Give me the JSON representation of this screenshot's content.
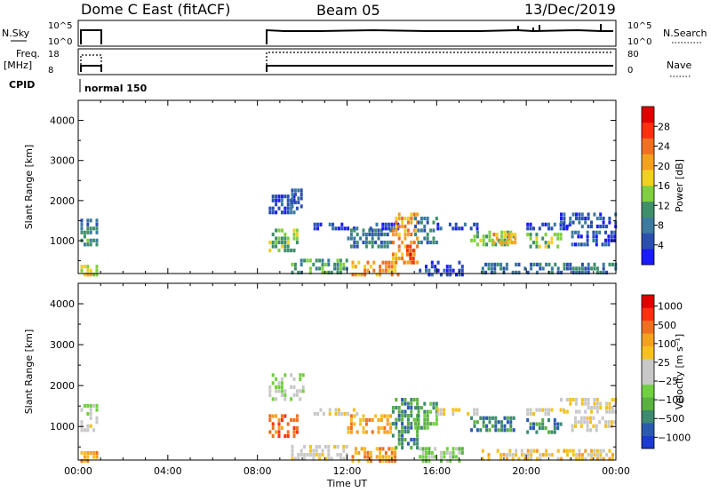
{
  "header": {
    "radar": "Dome C East (fitACF)",
    "beam": "Beam 05",
    "date": "13/Dec/2019"
  },
  "ops": {
    "nsky_label": "N.Sky",
    "nsky_ticks": [
      "10^5",
      "10^0"
    ],
    "nsearch_label": "N.Search",
    "nsearch_ticks": [
      "10^5",
      "10^0"
    ],
    "freq_label": "Freq.",
    "freq_unit": "[MHz]",
    "freq_ticks": [
      "18",
      "8"
    ],
    "nave_label": "Nave",
    "nave_ticks": [
      "80",
      "0"
    ],
    "cpid_label": "CPID",
    "cpid_value": "normal 150"
  },
  "chart_data": [
    {
      "type": "heatmap",
      "title": "",
      "xlabel": "",
      "ylabel": "Slant Range [km]",
      "xlim": [
        0,
        24
      ],
      "ylim": [
        180,
        4500
      ],
      "y_ticks": [
        "1000",
        "2000",
        "3000",
        "4000"
      ],
      "colorbar_label": "Power [dB]",
      "colorbar_ticks": [
        "4",
        "8",
        "12",
        "16",
        "20",
        "24",
        "28"
      ],
      "colorbar_colors": [
        "#1a1aff",
        "#2a4fb0",
        "#3c7aa0",
        "#3f8f6a",
        "#7fcf3f",
        "#f0d020",
        "#f5a020",
        "#f07020",
        "#ff3010",
        "#e00000"
      ],
      "regions": [
        {
          "t0": 0.1,
          "t1": 0.9,
          "r0": 1350,
          "r1": 1550,
          "level": 2
        },
        {
          "t0": 0.1,
          "t1": 0.9,
          "r0": 950,
          "r1": 1250,
          "level": 3
        },
        {
          "t0": 0.1,
          "t1": 0.9,
          "r0": 200,
          "r1": 400,
          "level": 5
        },
        {
          "t0": 8.5,
          "t1": 9.8,
          "r0": 1700,
          "r1": 2150,
          "level": 1
        },
        {
          "t0": 9.5,
          "t1": 10.0,
          "r0": 1900,
          "r1": 2300,
          "level": 1
        },
        {
          "t0": 8.5,
          "t1": 9.8,
          "r0": 800,
          "r1": 1300,
          "level": 4
        },
        {
          "t0": 9.5,
          "t1": 12.0,
          "r0": 200,
          "r1": 550,
          "level": 3
        },
        {
          "t0": 10.5,
          "t1": 12.5,
          "r0": 1350,
          "r1": 1450,
          "level": 1
        },
        {
          "t0": 12.0,
          "t1": 14.0,
          "r0": 900,
          "r1": 1300,
          "level": 2
        },
        {
          "t0": 12.2,
          "t1": 14.3,
          "r0": 200,
          "r1": 500,
          "level": 6
        },
        {
          "t0": 13.0,
          "t1": 14.3,
          "r0": 1350,
          "r1": 1450,
          "level": 1
        },
        {
          "t0": 14.0,
          "t1": 15.2,
          "r0": 500,
          "r1": 1700,
          "level": 6
        },
        {
          "t0": 14.5,
          "t1": 15.0,
          "r0": 500,
          "r1": 900,
          "level": 8
        },
        {
          "t0": 15.0,
          "t1": 16.0,
          "r0": 1000,
          "r1": 1600,
          "level": 2
        },
        {
          "t0": 15.2,
          "t1": 17.2,
          "r0": 200,
          "r1": 500,
          "level": 1
        },
        {
          "t0": 16.0,
          "t1": 17.8,
          "r0": 1300,
          "r1": 1450,
          "level": 1
        },
        {
          "t0": 17.5,
          "t1": 19.5,
          "r0": 950,
          "r1": 1250,
          "level": 4
        },
        {
          "t0": 18.5,
          "t1": 19.5,
          "r0": 1000,
          "r1": 1200,
          "level": 6
        },
        {
          "t0": 20.0,
          "t1": 21.5,
          "r0": 850,
          "r1": 1200,
          "level": 4
        },
        {
          "t0": 20.0,
          "t1": 22.0,
          "r0": 1300,
          "r1": 1450,
          "level": 1
        },
        {
          "t0": 21.5,
          "t1": 24.0,
          "r0": 1350,
          "r1": 1700,
          "level": 1
        },
        {
          "t0": 22.0,
          "t1": 24.0,
          "r0": 950,
          "r1": 1250,
          "level": 1
        },
        {
          "t0": 18.0,
          "t1": 24.0,
          "r0": 200,
          "r1": 450,
          "level": 2
        }
      ]
    },
    {
      "type": "heatmap",
      "title": "",
      "xlabel": "Time UT",
      "ylabel": "Slant Range [km]",
      "xlim": [
        0,
        24
      ],
      "ylim": [
        180,
        4500
      ],
      "x_ticks": [
        "00:00",
        "04:00",
        "08:00",
        "12:00",
        "16:00",
        "20:00",
        "00:00"
      ],
      "y_ticks": [
        "1000",
        "2000",
        "3000",
        "4000"
      ],
      "colorbar_label": "Velocity [m s⁻¹]",
      "colorbar_ticks": [
        "1000",
        "500",
        "100",
        "25",
        "−25",
        "−100",
        "−500",
        "−1000"
      ],
      "colorbar_colors": [
        "#1a3ad0",
        "#2a5ab0",
        "#3c8a70",
        "#5ab040",
        "#70d040",
        "#c8c8c8",
        "#c8c8c8",
        "#f5c020",
        "#f5a020",
        "#f07020",
        "#ff3010",
        "#e00000"
      ],
      "regions": [
        {
          "t0": 0.1,
          "t1": 0.9,
          "r0": 1350,
          "r1": 1550,
          "level": 5
        },
        {
          "t0": 0.1,
          "t1": 0.9,
          "r0": 950,
          "r1": 1250,
          "level": 6
        },
        {
          "t0": 0.1,
          "t1": 0.9,
          "r0": 200,
          "r1": 400,
          "level": 8
        },
        {
          "t0": 8.5,
          "t1": 10.0,
          "r0": 1700,
          "r1": 2300,
          "level": 5
        },
        {
          "t0": 8.5,
          "t1": 9.8,
          "r0": 800,
          "r1": 1300,
          "level": 9
        },
        {
          "t0": 9.5,
          "t1": 12.0,
          "r0": 200,
          "r1": 550,
          "level": 6
        },
        {
          "t0": 10.5,
          "t1": 12.5,
          "r0": 1350,
          "r1": 1450,
          "level": 6
        },
        {
          "t0": 12.0,
          "t1": 14.0,
          "r0": 900,
          "r1": 1300,
          "level": 8
        },
        {
          "t0": 12.2,
          "t1": 14.3,
          "r0": 200,
          "r1": 500,
          "level": 8
        },
        {
          "t0": 14.0,
          "t1": 15.2,
          "r0": 500,
          "r1": 1700,
          "level": 2
        },
        {
          "t0": 15.0,
          "t1": 16.0,
          "r0": 1000,
          "r1": 1600,
          "level": 3
        },
        {
          "t0": 15.2,
          "t1": 17.2,
          "r0": 200,
          "r1": 500,
          "level": 4
        },
        {
          "t0": 16.0,
          "t1": 17.8,
          "r0": 1300,
          "r1": 1450,
          "level": 6
        },
        {
          "t0": 17.5,
          "t1": 19.5,
          "r0": 950,
          "r1": 1250,
          "level": 2
        },
        {
          "t0": 20.0,
          "t1": 21.5,
          "r0": 850,
          "r1": 1200,
          "level": 2
        },
        {
          "t0": 20.0,
          "t1": 22.0,
          "r0": 1300,
          "r1": 1450,
          "level": 6
        },
        {
          "t0": 21.5,
          "t1": 24.0,
          "r0": 1350,
          "r1": 1700,
          "level": 6
        },
        {
          "t0": 22.0,
          "t1": 24.0,
          "r0": 950,
          "r1": 1250,
          "level": 6
        },
        {
          "t0": 18.0,
          "t1": 24.0,
          "r0": 200,
          "r1": 450,
          "level": 7
        }
      ]
    }
  ]
}
